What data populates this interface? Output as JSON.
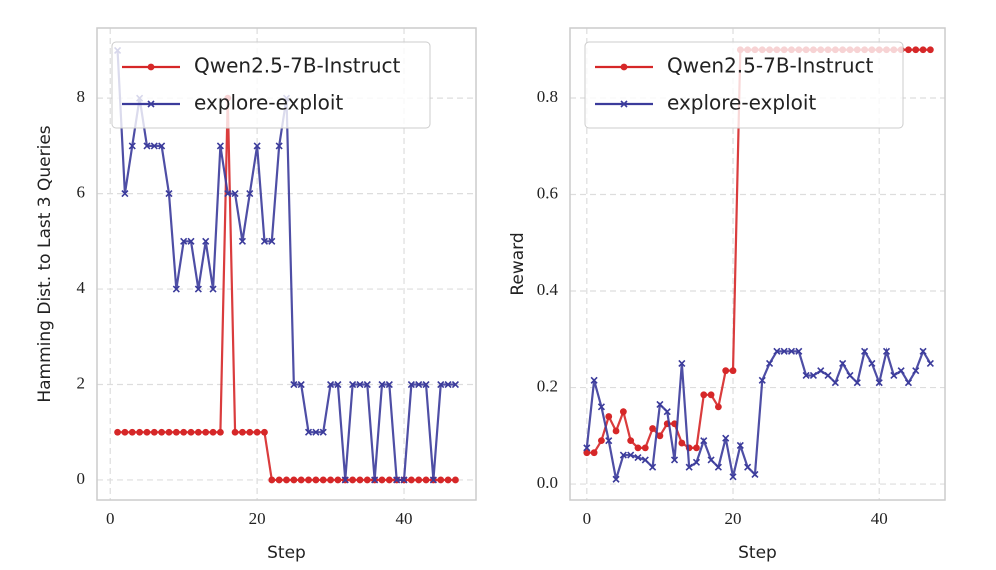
{
  "chart_data": [
    {
      "type": "line",
      "ylabel": "Hamming Dist. to Last 3 Queries",
      "xlabel": "Step",
      "x": [
        1,
        2,
        3,
        4,
        5,
        6,
        7,
        8,
        9,
        10,
        11,
        12,
        13,
        14,
        15,
        16,
        17,
        18,
        19,
        20,
        21,
        22,
        23,
        24,
        25,
        26,
        27,
        28,
        29,
        30,
        31,
        32,
        33,
        34,
        35,
        36,
        37,
        38,
        39,
        40,
        41,
        42,
        43,
        44,
        45,
        46,
        47
      ],
      "series": [
        {
          "name": "Qwen2.5-7B-Instruct",
          "color": "#d62728",
          "marker": "circle",
          "values": [
            1,
            1,
            1,
            1,
            1,
            1,
            1,
            1,
            1,
            1,
            1,
            1,
            1,
            1,
            1,
            8,
            1,
            1,
            1,
            1,
            1,
            0,
            0,
            0,
            0,
            0,
            0,
            0,
            0,
            0,
            0,
            0,
            0,
            0,
            0,
            0,
            0,
            0,
            0,
            0,
            0,
            0,
            0,
            0,
            0,
            0,
            0
          ]
        },
        {
          "name": "explore-exploit",
          "color": "#3b3b9b",
          "marker": "x",
          "values": [
            9,
            6,
            7,
            8,
            7,
            7,
            7,
            6,
            4,
            5,
            5,
            4,
            5,
            4,
            7,
            6,
            6,
            5,
            6,
            7,
            5,
            5,
            7,
            8,
            2,
            2,
            1,
            1,
            1,
            2,
            2,
            0,
            2,
            2,
            2,
            0,
            2,
            2,
            0,
            0,
            2,
            2,
            2,
            0,
            2,
            2,
            2
          ]
        }
      ],
      "xlim": [
        -1.8,
        49.8
      ],
      "ylim": [
        -0.42,
        9.47
      ],
      "xticks": [
        0,
        20,
        40
      ],
      "yticks": [
        0,
        2,
        4,
        6,
        8
      ],
      "grid": true,
      "legend": "upper left"
    },
    {
      "type": "line",
      "ylabel": "Reward",
      "xlabel": "Step",
      "x": [
        0,
        1,
        2,
        3,
        4,
        5,
        6,
        7,
        8,
        9,
        10,
        11,
        12,
        13,
        14,
        15,
        16,
        17,
        18,
        19,
        20,
        21,
        22,
        23,
        24,
        25,
        26,
        27,
        28,
        29,
        30,
        31,
        32,
        33,
        34,
        35,
        36,
        37,
        38,
        39,
        40,
        41,
        42,
        43,
        44,
        45,
        46,
        47
      ],
      "series": [
        {
          "name": "Qwen2.5-7B-Instruct",
          "color": "#d62728",
          "marker": "circle",
          "values": [
            0.065,
            0.065,
            0.09,
            0.14,
            0.11,
            0.15,
            0.09,
            0.075,
            0.075,
            0.115,
            0.1,
            0.125,
            0.125,
            0.085,
            0.075,
            0.075,
            0.185,
            0.185,
            0.16,
            0.235,
            0.235,
            0.9,
            0.9,
            0.9,
            0.9,
            0.9,
            0.9,
            0.9,
            0.9,
            0.9,
            0.9,
            0.9,
            0.9,
            0.9,
            0.9,
            0.9,
            0.9,
            0.9,
            0.9,
            0.9,
            0.9,
            0.9,
            0.9,
            0.9,
            0.9,
            0.9,
            0.9,
            0.9
          ]
        },
        {
          "name": "explore-exploit",
          "color": "#3b3b9b",
          "marker": "x",
          "values": [
            0.075,
            0.215,
            0.16,
            0.09,
            0.01,
            0.06,
            0.06,
            0.055,
            0.05,
            0.035,
            0.165,
            0.15,
            0.05,
            0.25,
            0.035,
            0.045,
            0.09,
            0.05,
            0.035,
            0.095,
            0.015,
            0.08,
            0.035,
            0.02,
            0.215,
            0.25,
            0.275,
            0.275,
            0.275,
            0.275,
            0.225,
            0.225,
            0.235,
            0.225,
            0.21,
            0.25,
            0.225,
            0.21,
            0.275,
            0.25,
            0.21,
            0.275,
            0.225,
            0.235,
            0.21,
            0.235,
            0.275,
            0.25
          ]
        }
      ],
      "xlim": [
        -2.3,
        49.0
      ],
      "ylim": [
        -0.033,
        0.945
      ],
      "xticks": [
        0,
        20,
        40
      ],
      "yticks": [
        {
          "value": 0,
          "label": "0.0"
        },
        0.2,
        0.4,
        0.6,
        0.8
      ],
      "grid": true,
      "legend": "upper left"
    }
  ]
}
